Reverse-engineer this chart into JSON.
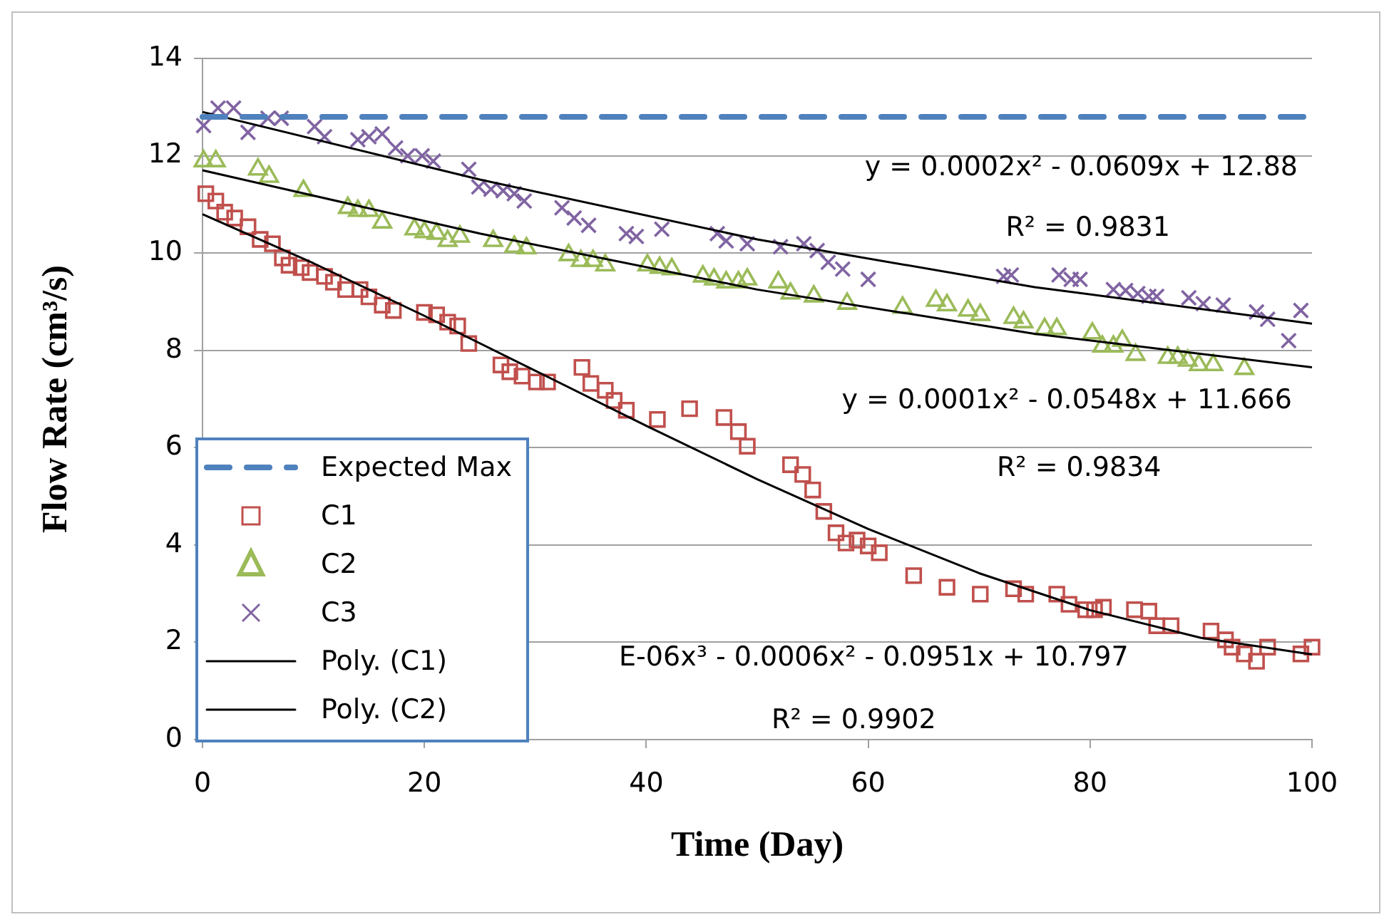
{
  "chart_data": {
    "type": "scatter",
    "xlabel": "Time (Day)",
    "ylabel": "Flow Rate (cm³/s)",
    "xlim": [
      0,
      100
    ],
    "xticks": [
      0,
      20,
      40,
      60,
      80,
      100
    ],
    "ylim": [
      0,
      14
    ],
    "yticks": [
      0,
      2,
      4,
      6,
      8,
      10,
      12,
      14
    ],
    "grid": "y",
    "legend": "bottom left",
    "series": [
      {
        "name": "Expected Max",
        "type": "line",
        "color": "#4f81bd",
        "line_style": "dashed",
        "marker": "none",
        "x": [
          0,
          100
        ],
        "values": [
          12.8,
          12.8
        ]
      },
      {
        "name": "C1",
        "color": "#c0504d",
        "marker": "square",
        "x": [
          0.3,
          1.2,
          2.0,
          2.9,
          4.1,
          5.2,
          6.3,
          7.2,
          7.8,
          8.9,
          9.7,
          11.0,
          11.8,
          12.9,
          14.2,
          15.0,
          16.2,
          17.2,
          20,
          21.1,
          22.1,
          23,
          24,
          26.9,
          27.7,
          28.8,
          30.1,
          31.1,
          34.2,
          35,
          36.3,
          37.1,
          38.2,
          41.0,
          43.9,
          47.0,
          48.3,
          49.1,
          53,
          54.1,
          55,
          56,
          57.1,
          58,
          59,
          60,
          61,
          64.1,
          67.1,
          70.1,
          73.1,
          74.2,
          77,
          78.1,
          79.6,
          80.4,
          81.2,
          84,
          85.3,
          86,
          87.3,
          90.9,
          92.2,
          92.8,
          93.9,
          95,
          96,
          99,
          100
        ],
        "values": [
          11.22,
          11.07,
          10.84,
          10.72,
          10.54,
          10.28,
          10.19,
          9.9,
          9.75,
          9.7,
          9.6,
          9.52,
          9.4,
          9.25,
          9.25,
          9.1,
          8.93,
          8.82,
          8.78,
          8.73,
          8.58,
          8.5,
          8.14,
          7.7,
          7.56,
          7.47,
          7.35,
          7.35,
          7.65,
          7.32,
          7.18,
          6.97,
          6.77,
          6.58,
          6.8,
          6.62,
          6.33,
          6.03,
          5.65,
          5.45,
          5.13,
          4.69,
          4.25,
          4.04,
          4.1,
          3.98,
          3.84,
          3.37,
          3.13,
          2.99,
          3.1,
          2.99,
          2.99,
          2.78,
          2.67,
          2.67,
          2.72,
          2.67,
          2.64,
          2.34,
          2.34,
          2.23,
          2.05,
          1.9,
          1.76,
          1.61,
          1.9,
          1.76,
          1.9
        ]
      },
      {
        "name": "C2",
        "color": "#9bbb59",
        "marker": "triangle",
        "x": [
          0.1,
          1.2,
          5,
          6,
          9.1,
          13.1,
          14,
          15,
          16.2,
          19.1,
          20,
          21.1,
          22.1,
          23.2,
          26.2,
          28.1,
          29.2,
          33,
          34.1,
          35.2,
          36.3,
          40.1,
          41.2,
          42.3,
          45.1,
          46.1,
          47.2,
          48.3,
          49.1,
          51.9,
          53,
          55.1,
          58.1,
          63.1,
          66.1,
          67.1,
          69,
          70.1,
          73.1,
          74,
          75.9,
          77,
          80.2,
          81.1,
          82.1,
          82.9,
          84.1,
          87,
          87.9,
          88.8,
          89.8,
          91.1,
          93.9
        ],
        "values": [
          11.89,
          11.89,
          11.72,
          11.57,
          11.28,
          10.93,
          10.87,
          10.87,
          10.63,
          10.49,
          10.43,
          10.4,
          10.25,
          10.34,
          10.25,
          10.13,
          10.1,
          9.96,
          9.84,
          9.84,
          9.75,
          9.75,
          9.7,
          9.67,
          9.52,
          9.46,
          9.4,
          9.4,
          9.46,
          9.4,
          9.17,
          9.11,
          8.96,
          8.88,
          9.02,
          8.93,
          8.82,
          8.73,
          8.67,
          8.58,
          8.44,
          8.44,
          8.35,
          8.08,
          8.08,
          8.2,
          7.91,
          7.85,
          7.85,
          7.79,
          7.7,
          7.7,
          7.62
        ]
      },
      {
        "name": "C3",
        "color": "#8064a2",
        "marker": "cross",
        "x": [
          0.1,
          1.4,
          2.8,
          4.1,
          5.9,
          7.1,
          10.1,
          11,
          14,
          15,
          16.2,
          17.4,
          18.5,
          19.8,
          20.8,
          24,
          24.9,
          26,
          27.1,
          28.1,
          29,
          32.4,
          33.5,
          34.8,
          38.2,
          39.1,
          41.4,
          46.4,
          47.2,
          49.1,
          52.1,
          54.2,
          55.4,
          56.4,
          57.7,
          60,
          72.2,
          72.9,
          77.2,
          78.3,
          79.1,
          82.1,
          83.2,
          84.3,
          85.3,
          86,
          88.9,
          90.2,
          92,
          95,
          96,
          97.9,
          99
        ],
        "values": [
          12.62,
          12.98,
          12.98,
          12.48,
          12.77,
          12.77,
          12.6,
          12.39,
          12.33,
          12.39,
          12.45,
          12.16,
          12.0,
          12.0,
          11.89,
          11.72,
          11.36,
          11.31,
          11.28,
          11.22,
          11.07,
          10.93,
          10.72,
          10.57,
          10.4,
          10.34,
          10.49,
          10.4,
          10.25,
          10.19,
          10.13,
          10.19,
          10.05,
          9.81,
          9.67,
          9.46,
          9.52,
          9.55,
          9.55,
          9.46,
          9.46,
          9.25,
          9.23,
          9.17,
          9.11,
          9.11,
          9.08,
          8.96,
          8.93,
          8.79,
          8.64,
          8.2,
          8.82
        ]
      },
      {
        "name": "Poly. (C1)",
        "type": "line",
        "color": "#000000",
        "marker": "none",
        "line_style": "solid",
        "x": [
          0,
          10,
          20,
          30,
          40,
          50,
          60,
          70,
          80,
          90,
          100
        ],
        "values": [
          10.8,
          9.79,
          8.71,
          7.58,
          6.45,
          5.35,
          4.33,
          3.42,
          2.66,
          2.09,
          1.75
        ]
      },
      {
        "name": "Poly. (C2)",
        "type": "line",
        "color": "#000000",
        "marker": "none",
        "line_style": "solid",
        "x": [
          0,
          25,
          50,
          75,
          100
        ],
        "values": [
          11.7,
          10.4,
          9.25,
          8.34,
          7.65
        ]
      },
      {
        "type": "line",
        "color": "#000000",
        "marker": "none",
        "line_style": "solid",
        "x": [
          0,
          25,
          50,
          75,
          100
        ],
        "values": [
          12.9,
          11.51,
          10.28,
          9.3,
          8.55
        ]
      }
    ],
    "annotations": [
      "y = 0.0002x² - 0.0609x + 12.88",
      "R² = 0.9831",
      "y = 0.0001x² - 0.0548x + 11.666",
      "R² = 0.9834",
      "E-06x³ - 0.0006x² - 0.0951x + 10.797",
      "R² = 0.9902"
    ]
  }
}
